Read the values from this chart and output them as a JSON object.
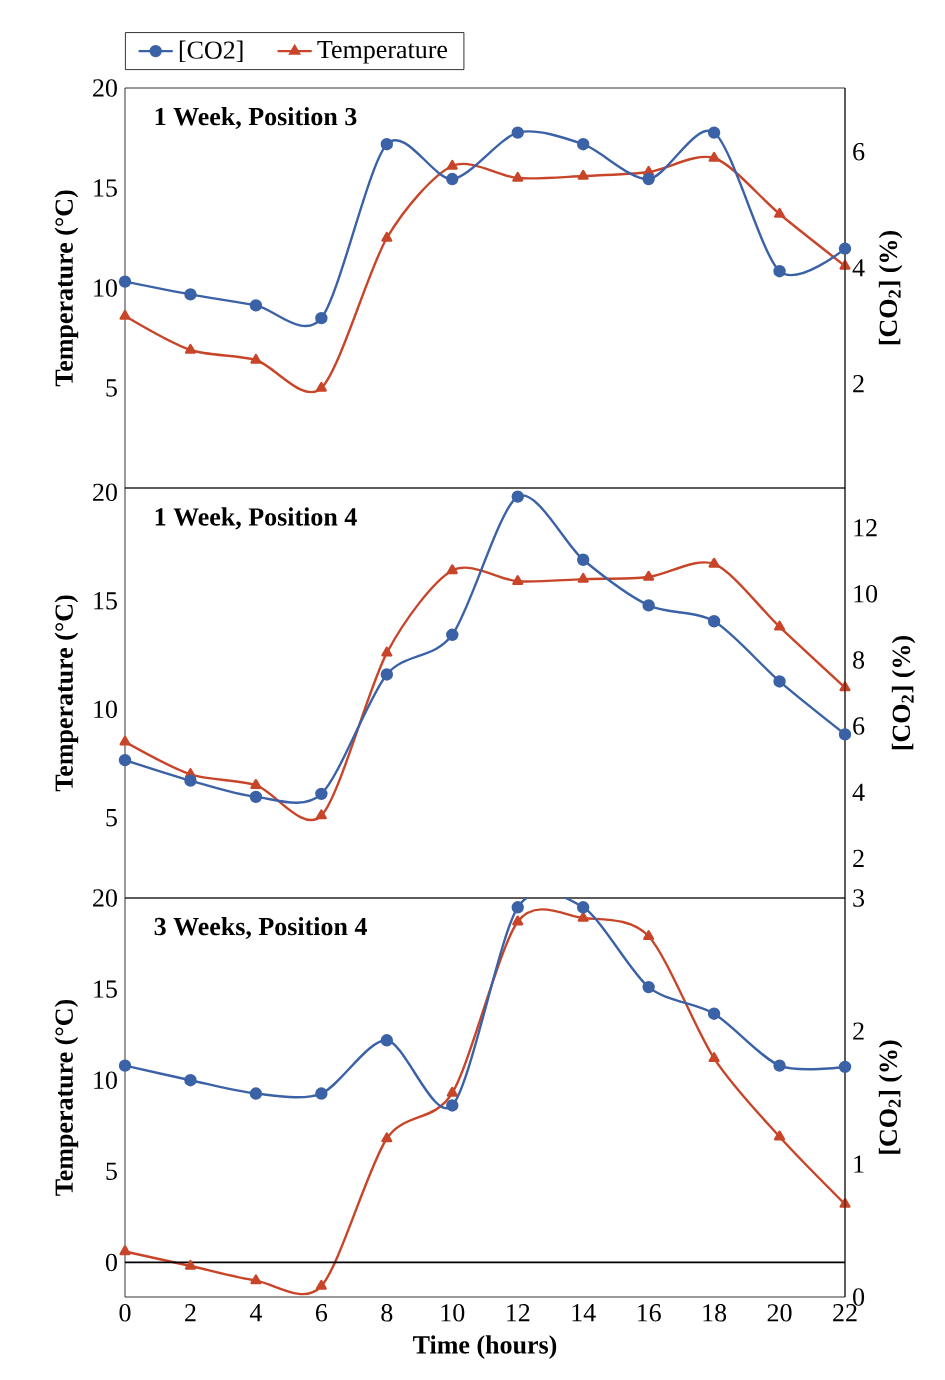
{
  "chart_data": [
    {
      "type": "line",
      "title": "1 Week, Position 3",
      "ylabel": "Temperature (°C)",
      "y2label": "[CO$_{2}$] (%)",
      "x": [
        0,
        2,
        4,
        6,
        8,
        10,
        12,
        14,
        16,
        18,
        20,
        22
      ],
      "xlim": [
        0,
        22
      ],
      "ylim": [
        0,
        20
      ],
      "yticks": [
        5,
        10,
        15,
        20
      ],
      "y2lim": [
        0.2,
        7.1
      ],
      "y2ticks": [
        2,
        4,
        6
      ],
      "tick_labels": "y",
      "legend": "top",
      "grid": false,
      "series": [
        {
          "name": "[CO2]",
          "color": "#3b62a6",
          "axis": "y2",
          "marker": "circle",
          "values": [
            3.76,
            3.54,
            3.35,
            3.13,
            6.13,
            5.53,
            6.33,
            6.13,
            5.53,
            6.33,
            3.94,
            4.33
          ]
        },
        {
          "name": "Temperature",
          "color": "#c8452a",
          "marker": "triangle",
          "values": [
            8.6,
            6.9,
            6.4,
            5.0,
            12.5,
            16.1,
            15.5,
            15.6,
            15.8,
            16.5,
            13.7,
            11.1
          ]
        }
      ]
    },
    {
      "type": "line",
      "title": "1 Week, Position 4",
      "ylabel": "Temperature (°C)",
      "y2label": "[CO$_{2}$] (%)",
      "x": [
        0,
        2,
        4,
        6,
        8,
        10,
        12,
        14,
        16,
        18,
        20,
        22
      ],
      "xlim": [
        0,
        22
      ],
      "ylim": [
        1.3,
        20.2
      ],
      "yticks": [
        5,
        10,
        15,
        20
      ],
      "y2lim": [
        0.8,
        13.2
      ],
      "y2ticks": [
        2,
        4,
        6,
        8,
        10,
        12
      ],
      "tick_labels": "y",
      "grid": false,
      "series": [
        {
          "color": "#3b62a6",
          "axis": "y2",
          "marker": "circle",
          "values": [
            4.97,
            4.35,
            3.86,
            3.95,
            7.56,
            8.76,
            12.94,
            11.03,
            9.65,
            9.17,
            7.35,
            5.75
          ]
        },
        {
          "color": "#c8452a",
          "marker": "triangle",
          "values": [
            8.5,
            7.0,
            6.5,
            5.1,
            12.6,
            16.4,
            15.9,
            16.0,
            16.1,
            16.7,
            13.8,
            11.0
          ]
        }
      ]
    },
    {
      "type": "line",
      "title": "3 Weeks, Position 4",
      "xlabel": "Time (hours)",
      "ylabel": "Temperature (°C)",
      "y2label": "[CO$_{2}$] (%)",
      "x": [
        0,
        2,
        4,
        6,
        8,
        10,
        12,
        14,
        16,
        18,
        20,
        22
      ],
      "xlim": [
        0,
        22
      ],
      "xticks": [
        0,
        2,
        4,
        6,
        8,
        10,
        12,
        14,
        16,
        18,
        20,
        22
      ],
      "ylim": [
        -1.9,
        20
      ],
      "yticks": [
        0,
        5,
        10,
        15,
        20
      ],
      "y2lim": [
        0,
        3
      ],
      "y2ticks": [
        0,
        1,
        2,
        3
      ],
      "grid": false,
      "ref_lines": [
        {
          "axis": "y",
          "value": 0,
          "color": "#000000"
        }
      ],
      "series": [
        {
          "color": "#3b62a6",
          "axis": "y2",
          "marker": "circle",
          "values": [
            1.74,
            1.63,
            1.53,
            1.53,
            1.93,
            1.44,
            2.93,
            2.93,
            2.33,
            2.13,
            1.74,
            1.73
          ]
        },
        {
          "color": "#c8452a",
          "marker": "triangle",
          "values": [
            0.6,
            -0.2,
            -1.0,
            -1.3,
            6.8,
            9.3,
            18.7,
            18.9,
            17.9,
            11.2,
            6.9,
            3.2
          ]
        }
      ]
    }
  ]
}
